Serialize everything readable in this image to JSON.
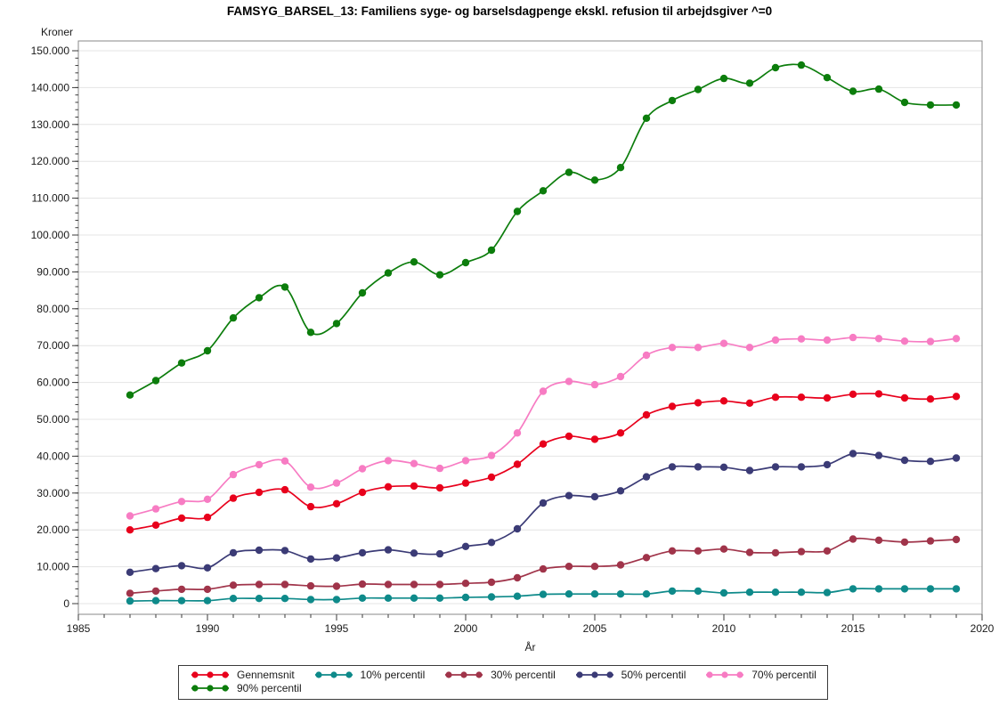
{
  "title": "FAMSYG_BARSEL_13: Familiens syge- og barselsdagpenge ekskl. refusion til arbejdsgiver ^=0",
  "chart_data": {
    "type": "line",
    "title": "FAMSYG_BARSEL_13: Familiens syge- og barselsdagpenge ekskl. refusion til arbejdsgiver ^=0",
    "ylabel": "Kroner",
    "xlabel": "År",
    "xlim": [
      1985,
      2020
    ],
    "ylim": [
      0,
      150000
    ],
    "grid": "horizontal",
    "legend_position": "bottom",
    "x_tick_labels": [
      "1985",
      "1990",
      "1995",
      "2000",
      "2005",
      "2010",
      "2015",
      "2020"
    ],
    "x_major_ticks": [
      1985,
      1990,
      1995,
      2000,
      2005,
      2010,
      2015,
      2020
    ],
    "x_minor_step": 1,
    "y_tick_labels": [
      "0",
      "10.000",
      "20.000",
      "30.000",
      "40.000",
      "50.000",
      "60.000",
      "70.000",
      "80.000",
      "90.000",
      "100.000",
      "110.000",
      "120.000",
      "130.000",
      "140.000",
      "150.000"
    ],
    "y_major_ticks": [
      0,
      10000,
      20000,
      30000,
      40000,
      50000,
      60000,
      70000,
      80000,
      90000,
      100000,
      110000,
      120000,
      130000,
      140000,
      150000
    ],
    "y_minor_step": 2000,
    "x": [
      1987,
      1988,
      1989,
      1990,
      1991,
      1992,
      1993,
      1994,
      1995,
      1996,
      1997,
      1998,
      1999,
      2000,
      2001,
      2002,
      2003,
      2004,
      2005,
      2006,
      2007,
      2008,
      2009,
      2010,
      2011,
      2012,
      2013,
      2014,
      2015,
      2016,
      2017,
      2018,
      2019
    ],
    "series": [
      {
        "name": "Gennemsnit",
        "color": "#e8001c",
        "values": [
          20000,
          21300,
          23200,
          23400,
          28600,
          30200,
          30900,
          26300,
          27100,
          30200,
          31700,
          31900,
          31400,
          32700,
          34300,
          37800,
          43300,
          45400,
          44600,
          46300,
          51200,
          53500,
          54500,
          55000,
          54400,
          56000,
          56000,
          55800,
          56800,
          56900,
          55800,
          55500,
          56200
        ]
      },
      {
        "name": "10% percentil",
        "color": "#0e8a8a",
        "values": [
          700,
          800,
          800,
          800,
          1400,
          1400,
          1400,
          1100,
          1100,
          1500,
          1500,
          1500,
          1500,
          1700,
          1800,
          2000,
          2500,
          2600,
          2600,
          2600,
          2600,
          3400,
          3400,
          2900,
          3100,
          3100,
          3100,
          3000,
          4000,
          4000,
          4000,
          4000,
          4000
        ]
      },
      {
        "name": "30% percentil",
        "color": "#a0344a",
        "values": [
          2800,
          3400,
          3900,
          3900,
          5000,
          5200,
          5200,
          4800,
          4700,
          5300,
          5200,
          5200,
          5200,
          5500,
          5800,
          7000,
          9400,
          10100,
          10100,
          10500,
          12500,
          14300,
          14300,
          14800,
          13900,
          13800,
          14100,
          14300,
          17500,
          17200,
          16700,
          17000,
          17400
        ]
      },
      {
        "name": "50% percentil",
        "color": "#3b3b76",
        "values": [
          8500,
          9500,
          10300,
          9700,
          13800,
          14500,
          14400,
          12100,
          12400,
          13800,
          14600,
          13700,
          13500,
          15500,
          16600,
          20300,
          27300,
          29300,
          29000,
          30600,
          34400,
          37100,
          37100,
          37000,
          36100,
          37100,
          37100,
          37700,
          40700,
          40200,
          38900,
          38600,
          39500
        ]
      },
      {
        "name": "70% percentil",
        "color": "#f77cc3",
        "values": [
          23800,
          25700,
          27700,
          28300,
          35000,
          37700,
          38700,
          31600,
          32700,
          36600,
          38800,
          38000,
          36700,
          38800,
          40200,
          46300,
          57600,
          60300,
          59400,
          61600,
          67400,
          69500,
          69500,
          70600,
          69500,
          71500,
          71800,
          71500,
          72200,
          71900,
          71200,
          71100,
          71900
        ]
      },
      {
        "name": "90% percentil",
        "color": "#0c7d0c",
        "values": [
          56600,
          60500,
          65300,
          68600,
          77500,
          83000,
          85900,
          73600,
          76000,
          84300,
          89700,
          92700,
          89200,
          92500,
          95900,
          106400,
          112000,
          117000,
          114900,
          118300,
          131700,
          136500,
          139500,
          142500,
          141200,
          145400,
          146100,
          142700,
          139000,
          139600,
          136000,
          135300,
          135300
        ]
      }
    ]
  },
  "style": {
    "grid_color": "#e4e4e4",
    "frame_color": "#8a8a8a",
    "tick_color": "#3a3a3a",
    "label_color": "#1a1a1a"
  }
}
